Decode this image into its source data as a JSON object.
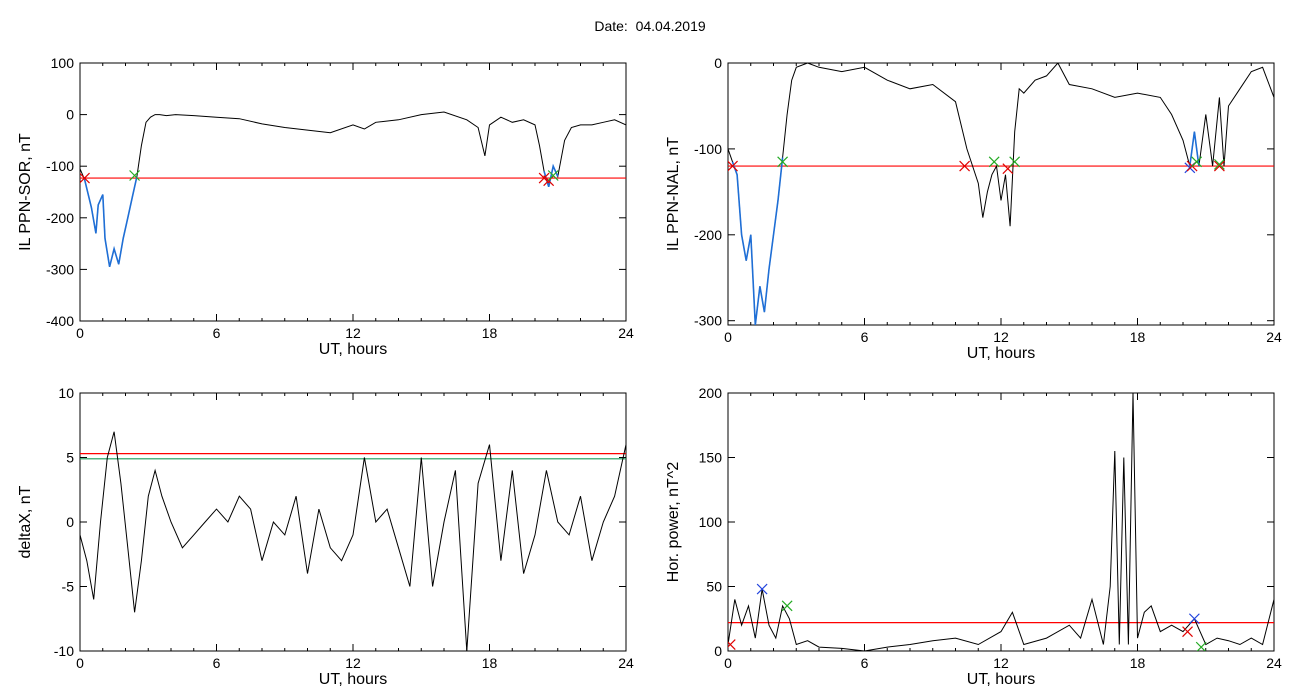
{
  "page_title": "Date:  04.04.2019",
  "colors": {
    "threshold": "#ff0000",
    "curve": "#000000",
    "highlight": "#1f6fd6",
    "marker_red": "#e00000",
    "marker_green": "#22aa22",
    "marker_blue": "#2244dd",
    "secondary_line": "#1a9a5a"
  },
  "chart_data": [
    {
      "type": "line",
      "ylabel": "IL PPN-SOR, nT",
      "xlabel": "UT, hours",
      "xlim": [
        0,
        24
      ],
      "ylim": [
        -400,
        100
      ],
      "xticks": [
        0,
        6,
        12,
        18,
        24
      ],
      "yticks": [
        -400,
        -300,
        -200,
        -100,
        0,
        100
      ],
      "series": [
        {
          "x": [
            0,
            0.2,
            0.5,
            0.7,
            0.8,
            1.0,
            1.1,
            1.3,
            1.5,
            1.7,
            1.9,
            2.1,
            2.3,
            2.5,
            2.7,
            2.9,
            3.1,
            3.3,
            3.5,
            3.8,
            4.2,
            5.0,
            6.0,
            7.0,
            8.0,
            9.0,
            10.0,
            11.0,
            12.0,
            12.5,
            13.0,
            14.0,
            15.0,
            16.0,
            17.0,
            17.5,
            17.8,
            18.0,
            18.5,
            19.0,
            19.5,
            20.0,
            20.2,
            20.4,
            20.6,
            20.8,
            21.0,
            21.3,
            21.6,
            22.0,
            22.5,
            23.0,
            23.5,
            24.0
          ],
          "y": [
            -105,
            -125,
            -180,
            -230,
            -175,
            -155,
            -240,
            -295,
            -260,
            -290,
            -240,
            -200,
            -160,
            -120,
            -60,
            -15,
            -5,
            0,
            0,
            -2,
            0,
            -2,
            -5,
            -8,
            -18,
            -25,
            -30,
            -35,
            -20,
            -28,
            -15,
            -10,
            0,
            5,
            -10,
            -25,
            -80,
            -20,
            -5,
            -15,
            -10,
            -20,
            -60,
            -110,
            -140,
            -100,
            -120,
            -50,
            -25,
            -20,
            -20,
            -15,
            -10,
            -20
          ]
        }
      ],
      "highlight_ranges": [
        [
          0.2,
          2.5
        ],
        [
          20.3,
          21.0
        ]
      ],
      "threshold": -123,
      "markers": [
        {
          "x": 0.2,
          "y": -123,
          "color": "red"
        },
        {
          "x": 2.4,
          "y": -118,
          "color": "green"
        },
        {
          "x": 20.4,
          "y": -123,
          "color": "red"
        },
        {
          "x": 20.6,
          "y": -128,
          "color": "red"
        },
        {
          "x": 20.8,
          "y": -118,
          "color": "green"
        }
      ]
    },
    {
      "type": "line",
      "ylabel": "IL PPN-NAL, nT",
      "xlabel": "UT, hours",
      "xlim": [
        0,
        24
      ],
      "ylim": [
        -305,
        0
      ],
      "xticks": [
        0,
        6,
        12,
        18,
        24
      ],
      "yticks": [
        -300,
        -200,
        -100,
        0
      ],
      "series": [
        {
          "x": [
            0,
            0.2,
            0.4,
            0.6,
            0.8,
            1.0,
            1.2,
            1.4,
            1.6,
            1.8,
            2.0,
            2.2,
            2.4,
            2.6,
            2.8,
            3.0,
            3.5,
            4.0,
            5.0,
            6.0,
            7.0,
            8.0,
            9.0,
            10.0,
            10.5,
            11.0,
            11.2,
            11.4,
            11.6,
            11.8,
            12.0,
            12.2,
            12.4,
            12.6,
            12.8,
            13.0,
            13.5,
            14.0,
            14.5,
            15.0,
            16.0,
            17.0,
            18.0,
            19.0,
            19.5,
            20.0,
            20.3,
            20.5,
            20.7,
            21.0,
            21.3,
            21.6,
            21.8,
            22.0,
            22.5,
            23.0,
            23.5,
            24.0
          ],
          "y": [
            -100,
            -115,
            -130,
            -200,
            -230,
            -200,
            -305,
            -260,
            -290,
            -240,
            -200,
            -160,
            -110,
            -60,
            -20,
            -5,
            0,
            -5,
            -10,
            -5,
            -20,
            -30,
            -25,
            -45,
            -100,
            -140,
            -180,
            -150,
            -130,
            -120,
            -160,
            -130,
            -190,
            -80,
            -30,
            -35,
            -20,
            -15,
            0,
            -25,
            -30,
            -40,
            -35,
            -40,
            -60,
            -90,
            -120,
            -80,
            -120,
            -60,
            -120,
            -40,
            -120,
            -50,
            -30,
            -10,
            -5,
            -40
          ]
        }
      ],
      "highlight_ranges": [
        [
          0.2,
          2.5
        ],
        [
          20.3,
          20.7
        ]
      ],
      "threshold": -120,
      "markers": [
        {
          "x": 0.2,
          "y": -120,
          "color": "red"
        },
        {
          "x": 2.4,
          "y": -115,
          "color": "green"
        },
        {
          "x": 10.4,
          "y": -120,
          "color": "red"
        },
        {
          "x": 11.7,
          "y": -115,
          "color": "green"
        },
        {
          "x": 12.3,
          "y": -123,
          "color": "red"
        },
        {
          "x": 12.6,
          "y": -115,
          "color": "green"
        },
        {
          "x": 20.3,
          "y": -122,
          "color": "blue"
        },
        {
          "x": 20.4,
          "y": -120,
          "color": "red"
        },
        {
          "x": 20.6,
          "y": -115,
          "color": "green"
        },
        {
          "x": 21.6,
          "y": -120,
          "color": "red"
        },
        {
          "x": 21.6,
          "y": -118,
          "color": "green"
        }
      ]
    },
    {
      "type": "line",
      "ylabel": "deltaX, nT",
      "xlabel": "UT, hours",
      "xlim": [
        0,
        24
      ],
      "ylim": [
        -10,
        10
      ],
      "xticks": [
        0,
        6,
        12,
        18,
        24
      ],
      "yticks": [
        -10,
        -5,
        0,
        5,
        10
      ],
      "series": [
        {
          "x": [
            0,
            0.3,
            0.6,
            0.9,
            1.2,
            1.5,
            1.8,
            2.1,
            2.4,
            2.7,
            3.0,
            3.3,
            3.6,
            4.0,
            4.5,
            5.0,
            5.5,
            6.0,
            6.5,
            7.0,
            7.5,
            8.0,
            8.5,
            9.0,
            9.5,
            10.0,
            10.5,
            11.0,
            11.5,
            12.0,
            12.5,
            13.0,
            13.5,
            14.0,
            14.5,
            15.0,
            15.5,
            16.0,
            16.5,
            17.0,
            17.5,
            18.0,
            18.5,
            19.0,
            19.5,
            20.0,
            20.5,
            21.0,
            21.5,
            22.0,
            22.5,
            23.0,
            23.5,
            24.0
          ],
          "y": [
            -1,
            -3,
            -6,
            0,
            5,
            7,
            3,
            -2,
            -7,
            -3,
            2,
            4,
            2,
            0,
            -2,
            -1,
            0,
            1,
            0,
            2,
            1,
            -3,
            0,
            -1,
            2,
            -4,
            1,
            -2,
            -3,
            -1,
            5,
            0,
            1,
            -2,
            -5,
            5,
            -5,
            0,
            4,
            -10,
            3,
            6,
            -3,
            4,
            -4,
            -1,
            4,
            0,
            -1,
            2,
            -3,
            0,
            2,
            6
          ]
        }
      ],
      "threshold": 5.3,
      "secondary_line": 4.9
    },
    {
      "type": "line",
      "ylabel": "Hor. power, nT^2",
      "xlabel": "UT, hours",
      "xlim": [
        0,
        24
      ],
      "ylim": [
        0,
        200
      ],
      "xticks": [
        0,
        6,
        12,
        18,
        24
      ],
      "yticks": [
        0,
        50,
        100,
        150,
        200
      ],
      "series": [
        {
          "x": [
            0,
            0.3,
            0.6,
            0.9,
            1.2,
            1.5,
            1.8,
            2.1,
            2.4,
            2.7,
            3.0,
            3.5,
            4.0,
            5.0,
            6.0,
            7.0,
            8.0,
            9.0,
            10.0,
            11.0,
            12.0,
            12.5,
            13.0,
            14.0,
            15.0,
            15.5,
            16.0,
            16.5,
            16.8,
            17.0,
            17.2,
            17.4,
            17.6,
            17.8,
            18.0,
            18.3,
            18.6,
            19.0,
            19.5,
            20.0,
            20.5,
            21.0,
            21.5,
            22.0,
            22.5,
            23.0,
            23.5,
            24.0
          ],
          "y": [
            5,
            40,
            20,
            35,
            10,
            48,
            20,
            10,
            35,
            25,
            5,
            8,
            3,
            2,
            0,
            3,
            5,
            8,
            10,
            5,
            15,
            30,
            5,
            10,
            20,
            10,
            40,
            5,
            50,
            155,
            5,
            150,
            5,
            200,
            10,
            30,
            35,
            15,
            20,
            15,
            25,
            5,
            10,
            8,
            5,
            10,
            5,
            40
          ]
        }
      ],
      "threshold": 22,
      "markers": [
        {
          "x": 0.1,
          "y": 5,
          "color": "red"
        },
        {
          "x": 1.5,
          "y": 48,
          "color": "blue"
        },
        {
          "x": 2.6,
          "y": 35,
          "color": "green"
        },
        {
          "x": 20.2,
          "y": 15,
          "color": "red"
        },
        {
          "x": 20.5,
          "y": 25,
          "color": "blue"
        },
        {
          "x": 20.8,
          "y": 3,
          "color": "green"
        }
      ]
    }
  ]
}
